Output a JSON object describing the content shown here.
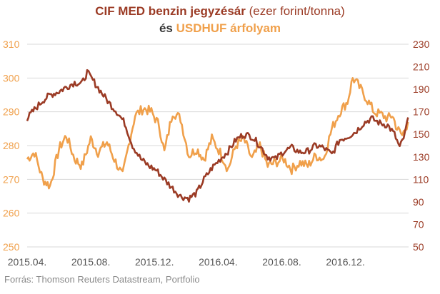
{
  "title": {
    "line1_brown_bold": "CIF MED benzin jegyzésár",
    "line1_rest": "(ezer forint/tonna)",
    "line2_dark": "és",
    "line2_orange": "USDHUF árfolyam"
  },
  "source": "Forrás: Thomson Reuters Datastream, Portfolio",
  "colors": {
    "benzin": "#9b3b25",
    "usdhuf": "#f0a04b",
    "left_axis": "#f0a04b",
    "right_axis": "#9b3b25",
    "grid": "#d9d9d9",
    "x_axis_text": "#555555"
  },
  "chart_data": {
    "type": "line",
    "x_tick_labels": [
      "2015.04.",
      "2015.08.",
      "2015.12.",
      "2016.04.",
      "2016.08.",
      "2016.12."
    ],
    "x_range": [
      "2015-04",
      "2017-04"
    ],
    "y_left": {
      "range": [
        250,
        310
      ],
      "ticks": [
        250,
        260,
        270,
        280,
        290,
        300,
        310
      ]
    },
    "y_right": {
      "range": [
        50,
        230
      ],
      "ticks": [
        50,
        70,
        90,
        110,
        130,
        150,
        170,
        190,
        210,
        230
      ]
    },
    "grid": true,
    "series": [
      {
        "axis": "left",
        "color": "#f0a04b",
        "points": [
          [
            "2015-04-01",
            276
          ],
          [
            "2015-04-15",
            278
          ],
          [
            "2015-05-01",
            270
          ],
          [
            "2015-05-15",
            268
          ],
          [
            "2015-06-01",
            279
          ],
          [
            "2015-06-15",
            283
          ],
          [
            "2015-07-01",
            276
          ],
          [
            "2015-07-15",
            274
          ],
          [
            "2015-08-01",
            282
          ],
          [
            "2015-08-15",
            278
          ],
          [
            "2015-09-01",
            281
          ],
          [
            "2015-09-15",
            276
          ],
          [
            "2015-10-01",
            271
          ],
          [
            "2015-10-15",
            282
          ],
          [
            "2015-10-25",
            289
          ],
          [
            "2015-11-10",
            291
          ],
          [
            "2015-11-25",
            290
          ],
          [
            "2015-12-10",
            286
          ],
          [
            "2015-12-20",
            278
          ],
          [
            "2016-01-05",
            290
          ],
          [
            "2016-01-20",
            288
          ],
          [
            "2016-02-05",
            277
          ],
          [
            "2016-02-20",
            279
          ],
          [
            "2016-03-05",
            276
          ],
          [
            "2016-03-20",
            282
          ],
          [
            "2016-04-05",
            278
          ],
          [
            "2016-04-20",
            273
          ],
          [
            "2016-05-05",
            280
          ],
          [
            "2016-05-20",
            282
          ],
          [
            "2016-06-05",
            276
          ],
          [
            "2016-06-20",
            280
          ],
          [
            "2016-07-05",
            274
          ],
          [
            "2016-07-20",
            275
          ],
          [
            "2016-08-05",
            276
          ],
          [
            "2016-08-20",
            273
          ],
          [
            "2016-09-05",
            275
          ],
          [
            "2016-09-20",
            274
          ],
          [
            "2016-10-05",
            277
          ],
          [
            "2016-10-20",
            276
          ],
          [
            "2016-11-05",
            285
          ],
          [
            "2016-11-20",
            290
          ],
          [
            "2016-12-05",
            293
          ],
          [
            "2016-12-15",
            300
          ],
          [
            "2016-12-25",
            298
          ],
          [
            "2017-01-10",
            294
          ],
          [
            "2017-01-25",
            290
          ],
          [
            "2017-02-10",
            289
          ],
          [
            "2017-02-20",
            288
          ],
          [
            "2017-03-01",
            289
          ],
          [
            "2017-03-10",
            285
          ],
          [
            "2017-03-20",
            283
          ],
          [
            "2017-03-31",
            287
          ]
        ]
      },
      {
        "axis": "right",
        "color": "#9b3b25",
        "points": [
          [
            "2015-04-01",
            164
          ],
          [
            "2015-04-15",
            172
          ],
          [
            "2015-05-01",
            180
          ],
          [
            "2015-05-15",
            185
          ],
          [
            "2015-06-01",
            188
          ],
          [
            "2015-06-15",
            192
          ],
          [
            "2015-07-01",
            196
          ],
          [
            "2015-07-15",
            195
          ],
          [
            "2015-07-25",
            205
          ],
          [
            "2015-08-05",
            198
          ],
          [
            "2015-08-20",
            188
          ],
          [
            "2015-09-05",
            178
          ],
          [
            "2015-09-20",
            170
          ],
          [
            "2015-10-05",
            160
          ],
          [
            "2015-10-20",
            140
          ],
          [
            "2015-11-05",
            128
          ],
          [
            "2015-11-20",
            122
          ],
          [
            "2015-12-05",
            118
          ],
          [
            "2015-12-20",
            110
          ],
          [
            "2016-01-05",
            102
          ],
          [
            "2016-01-20",
            95
          ],
          [
            "2016-02-05",
            93
          ],
          [
            "2016-02-20",
            98
          ],
          [
            "2016-03-05",
            110
          ],
          [
            "2016-03-20",
            120
          ],
          [
            "2016-04-05",
            128
          ],
          [
            "2016-04-20",
            135
          ],
          [
            "2016-05-05",
            145
          ],
          [
            "2016-05-20",
            150
          ],
          [
            "2016-06-05",
            148
          ],
          [
            "2016-06-20",
            140
          ],
          [
            "2016-07-05",
            130
          ],
          [
            "2016-07-20",
            128
          ],
          [
            "2016-08-05",
            135
          ],
          [
            "2016-08-20",
            138
          ],
          [
            "2016-09-05",
            134
          ],
          [
            "2016-09-20",
            135
          ],
          [
            "2016-10-05",
            140
          ],
          [
            "2016-10-20",
            138
          ],
          [
            "2016-11-05",
            132
          ],
          [
            "2016-11-20",
            145
          ],
          [
            "2016-12-05",
            148
          ],
          [
            "2016-12-20",
            152
          ],
          [
            "2017-01-05",
            160
          ],
          [
            "2017-01-20",
            164
          ],
          [
            "2017-02-05",
            160
          ],
          [
            "2017-02-20",
            158
          ],
          [
            "2017-03-05",
            150
          ],
          [
            "2017-03-15",
            138
          ],
          [
            "2017-03-25",
            150
          ],
          [
            "2017-03-31",
            165
          ]
        ]
      }
    ]
  }
}
